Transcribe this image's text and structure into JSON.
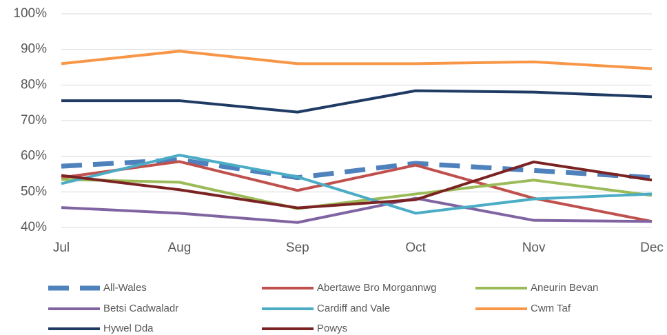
{
  "chart_data": {
    "type": "line",
    "categories": [
      "Jul",
      "Aug",
      "Sep",
      "Oct",
      "Nov",
      "Dec"
    ],
    "ylim": [
      40,
      100
    ],
    "yticks": [
      {
        "value": 40,
        "label": "40%"
      },
      {
        "value": 50,
        "label": "50%"
      },
      {
        "value": 60,
        "label": "60%"
      },
      {
        "value": 70,
        "label": "70%"
      },
      {
        "value": 80,
        "label": "80%"
      },
      {
        "value": 90,
        "label": "90%"
      },
      {
        "value": 100,
        "label": "100%"
      }
    ],
    "grid": true,
    "legend": "bottom",
    "series": [
      {
        "name": "All-Wales",
        "color": "#4f81bd",
        "dashed": true,
        "values": [
          57.2,
          59,
          54,
          58,
          56,
          54
        ]
      },
      {
        "name": "Abertawe Bro Morgannwg",
        "color": "#c0504d",
        "values": [
          54,
          58.5,
          50.4,
          57.5,
          48.2,
          41.7
        ]
      },
      {
        "name": "Aneurin Bevan",
        "color": "#9bbb59",
        "values": [
          53.5,
          52.7,
          45.3,
          49.4,
          53.3,
          49
        ]
      },
      {
        "name": "Betsi Cadwaladr",
        "color": "#8064a2",
        "values": [
          45.6,
          44,
          41.4,
          48.2,
          42,
          41.7
        ]
      },
      {
        "name": "Cardiff and Vale",
        "color": "#4bacc6",
        "values": [
          52.3,
          60.3,
          54.2,
          44,
          48,
          49.4
        ]
      },
      {
        "name": "Cwm Taf",
        "color": "#f79646",
        "values": [
          86,
          89.5,
          86,
          86,
          86.5,
          84.6
        ]
      },
      {
        "name": "Hywel Dda",
        "color": "#1f3b63",
        "values": [
          75.6,
          75.6,
          72.4,
          78.4,
          78,
          76.7
        ]
      },
      {
        "name": "Powys",
        "color": "#7b2323",
        "values": [
          54.6,
          50.6,
          45.5,
          47.8,
          58.4,
          53.3
        ]
      }
    ]
  }
}
